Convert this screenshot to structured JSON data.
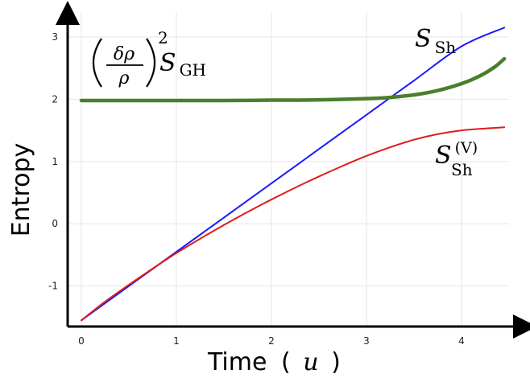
{
  "chart_data": {
    "type": "line",
    "xlabel_text": "Time",
    "xlabel_paren_open": "(",
    "xlabel_var": "u",
    "xlabel_paren_close": ")",
    "ylabel": "Entropy",
    "xlim": [
      0,
      4.5
    ],
    "ylim": [
      -1.65,
      3.4
    ],
    "xticks": [
      0,
      1,
      2,
      3,
      4
    ],
    "yticks": [
      -1,
      0,
      1,
      2,
      3
    ],
    "xtick_labels": [
      "0",
      "1",
      "2",
      "3",
      "4"
    ],
    "ytick_labels": [
      "-1",
      "0",
      "1",
      "2",
      "3"
    ],
    "grid": true,
    "series": [
      {
        "name": "S_Sh",
        "color": "#1a1aff",
        "x": [
          0,
          0.5,
          1.0,
          1.5,
          2.0,
          2.5,
          3.0,
          3.5,
          4.0,
          4.45
        ],
        "y": [
          -1.55,
          -1.0,
          -0.45,
          0.1,
          0.65,
          1.2,
          1.75,
          2.3,
          2.85,
          3.15
        ]
      },
      {
        "name": "S_Sh^(V)",
        "color": "#dd1c1c",
        "x": [
          0,
          0.25,
          0.5,
          0.75,
          1.0,
          1.25,
          1.5,
          1.75,
          2.0,
          2.25,
          2.5,
          2.75,
          3.0,
          3.25,
          3.5,
          3.75,
          4.0,
          4.25,
          4.45
        ],
        "y": [
          -1.55,
          -1.25,
          -0.98,
          -0.72,
          -0.47,
          -0.24,
          -0.02,
          0.19,
          0.39,
          0.58,
          0.76,
          0.93,
          1.09,
          1.23,
          1.35,
          1.44,
          1.5,
          1.53,
          1.55
        ]
      },
      {
        "name": "(δρ/ρ)^2 S_GH",
        "color": "#4a7f2a",
        "x": [
          0,
          0.5,
          1.0,
          1.5,
          2.0,
          2.5,
          3.0,
          3.25,
          3.5,
          3.75,
          4.0,
          4.2,
          4.35,
          4.45
        ],
        "y": [
          1.98,
          1.98,
          1.98,
          1.98,
          1.985,
          1.99,
          2.01,
          2.03,
          2.07,
          2.14,
          2.25,
          2.38,
          2.52,
          2.65
        ]
      }
    ],
    "annotations": {
      "s_sh_base": "S",
      "s_sh_sub": "Sh",
      "s_shv_base": "S",
      "s_shv_sub": "Sh",
      "s_shv_sup": "(V)",
      "sgh_num": "δρ",
      "sgh_den": "ρ",
      "sgh_pow": "2",
      "sgh_base": "S",
      "sgh_sub": "GH"
    }
  }
}
